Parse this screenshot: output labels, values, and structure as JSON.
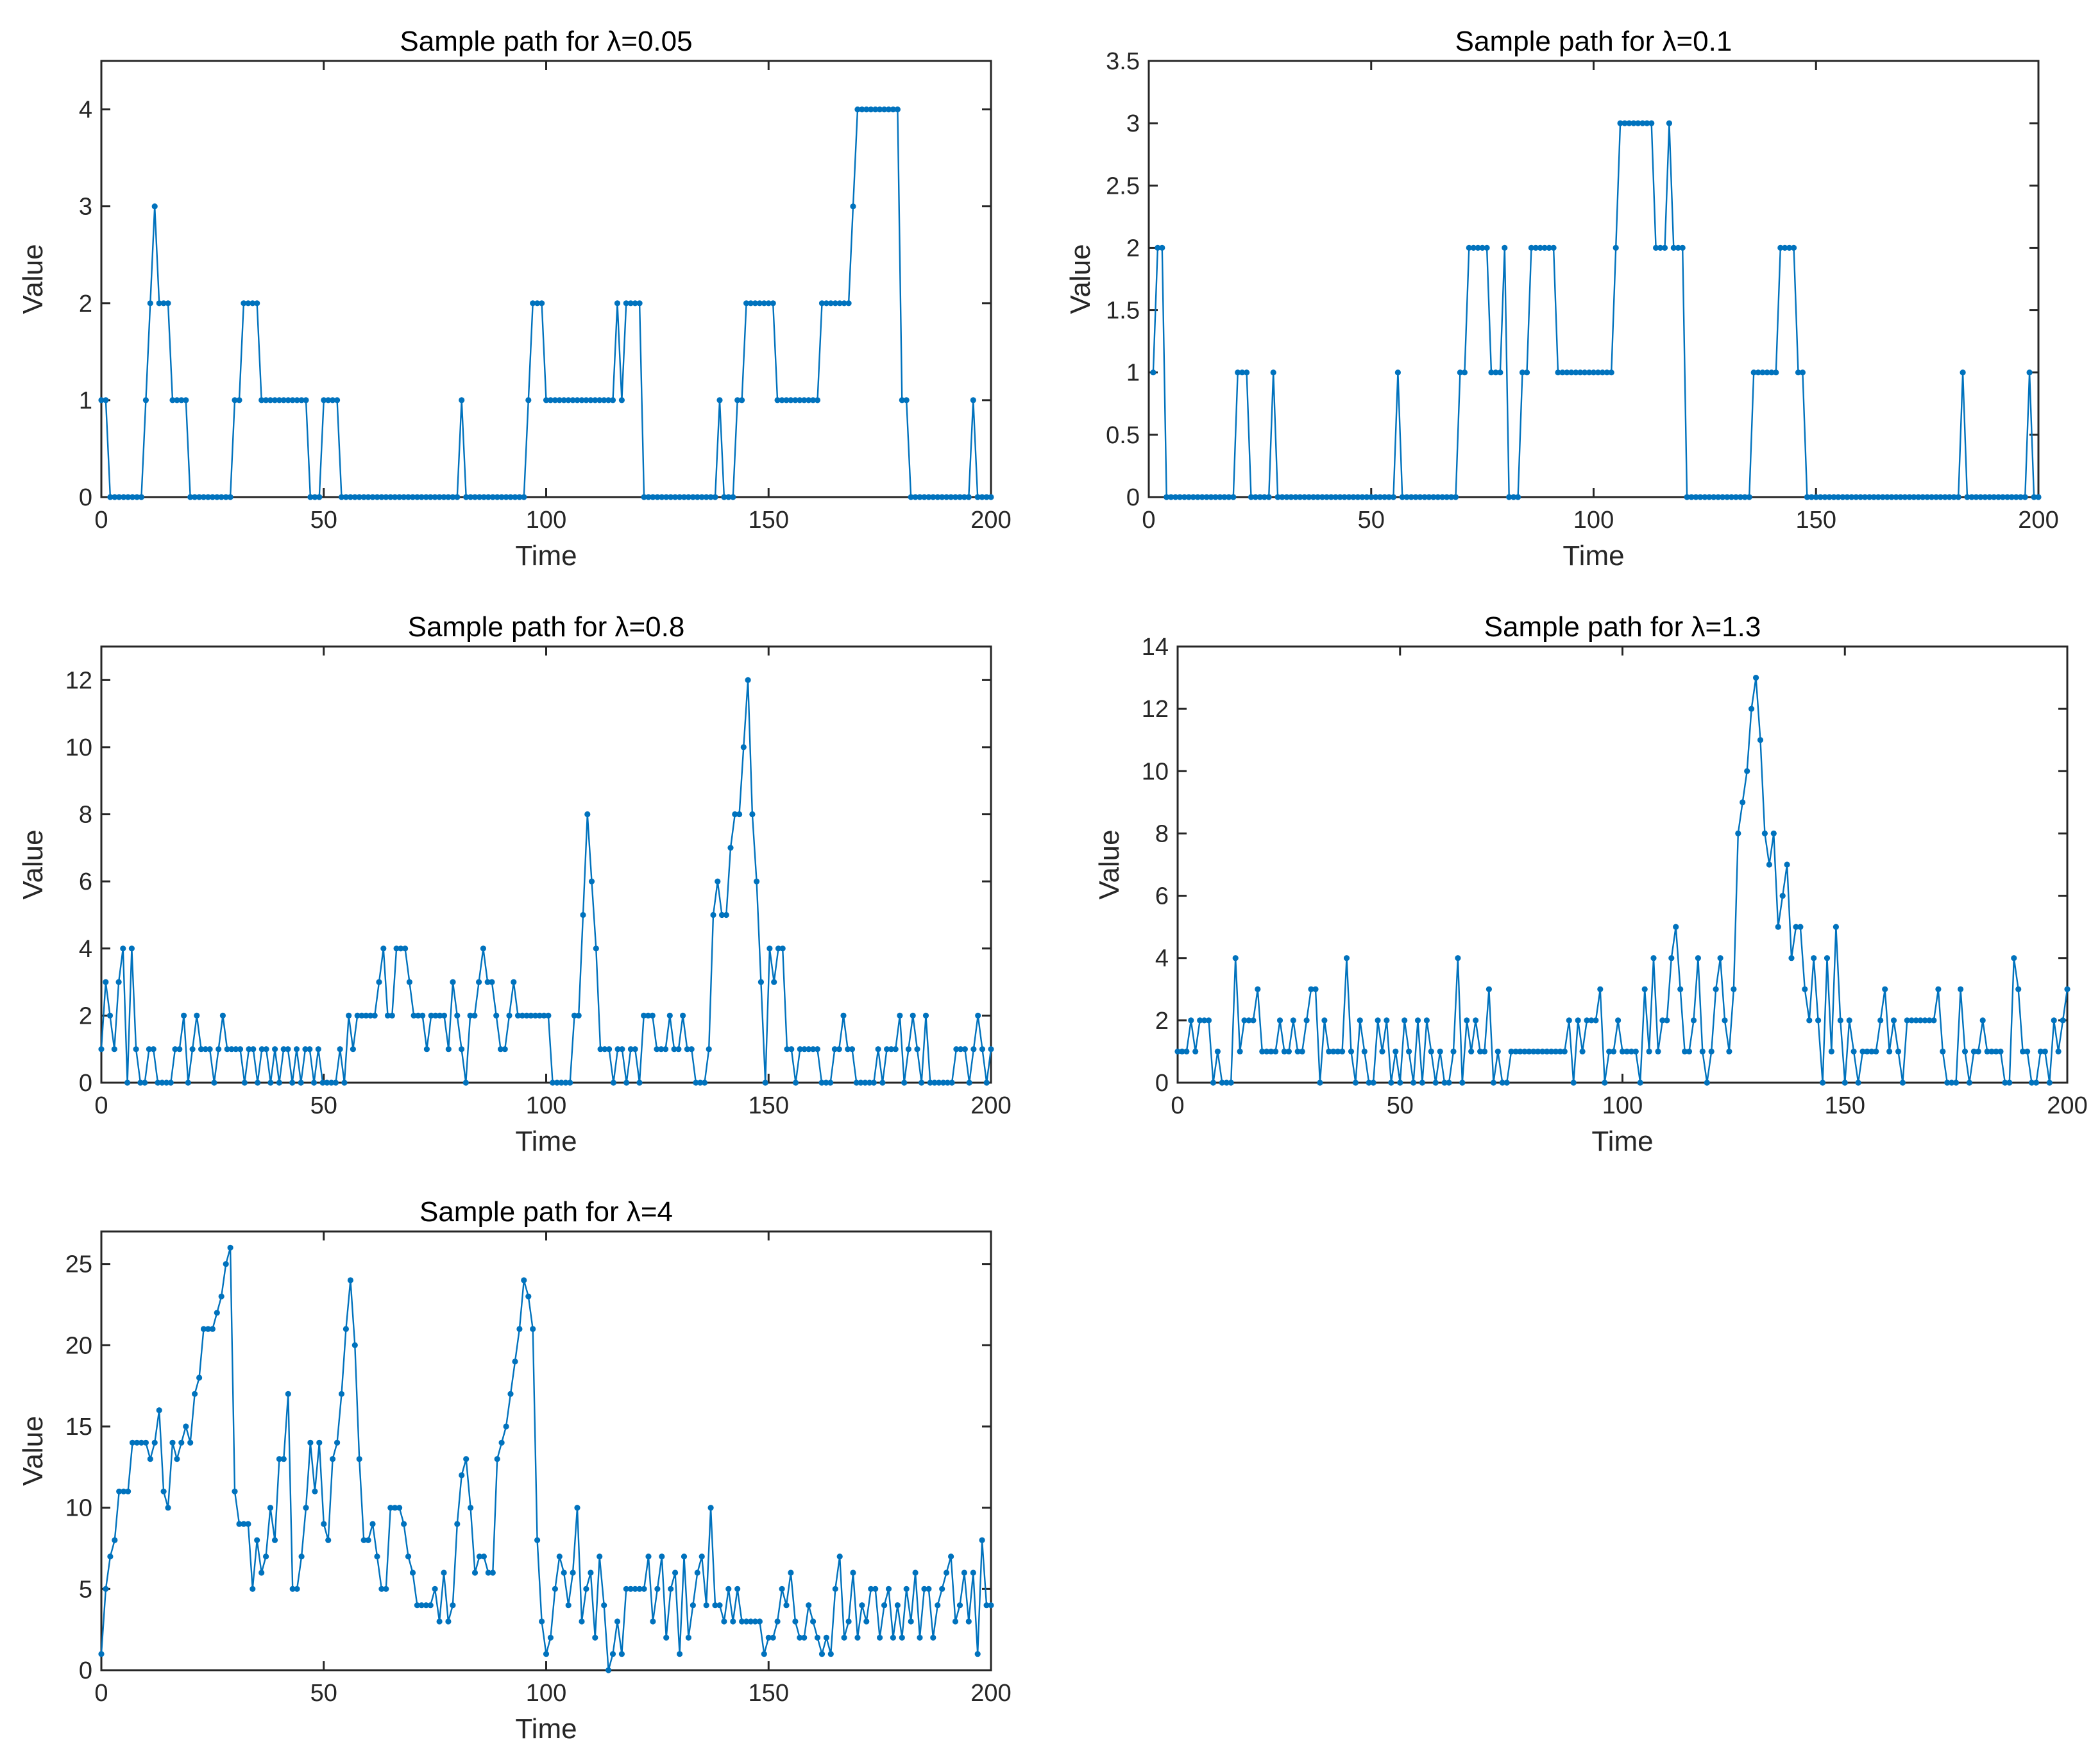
{
  "colors": {
    "series": "#0072BD",
    "axis": "#262626"
  },
  "chart_data": [
    {
      "type": "line",
      "title": "Sample path for λ=0.05",
      "xlabel": "Time",
      "ylabel": "Value",
      "xlim": [
        0,
        200
      ],
      "ylim": [
        0,
        4.5
      ],
      "xticks": [
        0,
        50,
        100,
        150,
        200
      ],
      "yticks": [
        0,
        1,
        2,
        3,
        4
      ],
      "grid": false,
      "segments": [
        [
          0,
          1
        ],
        [
          1,
          1
        ],
        [
          2,
          0
        ],
        [
          9,
          0
        ],
        [
          10,
          1
        ],
        [
          11,
          2
        ],
        [
          12,
          3
        ],
        [
          13,
          2
        ],
        [
          15,
          2
        ],
        [
          16,
          1
        ],
        [
          19,
          1
        ],
        [
          20,
          0
        ],
        [
          29,
          0
        ],
        [
          30,
          1
        ],
        [
          31,
          1
        ],
        [
          32,
          2
        ],
        [
          35,
          2
        ],
        [
          36,
          1
        ],
        [
          46,
          1
        ],
        [
          47,
          0
        ],
        [
          49,
          0
        ],
        [
          50,
          1
        ],
        [
          53,
          1
        ],
        [
          54,
          0
        ],
        [
          80,
          0
        ],
        [
          81,
          1
        ],
        [
          82,
          0
        ],
        [
          95,
          0
        ],
        [
          96,
          1
        ],
        [
          97,
          2
        ],
        [
          99,
          2
        ],
        [
          100,
          1
        ],
        [
          115,
          1
        ],
        [
          116,
          2
        ],
        [
          117,
          1
        ],
        [
          118,
          2
        ],
        [
          121,
          2
        ],
        [
          122,
          0
        ],
        [
          138,
          0
        ],
        [
          139,
          1
        ],
        [
          140,
          0
        ],
        [
          142,
          0
        ],
        [
          143,
          1
        ],
        [
          144,
          1
        ],
        [
          145,
          2
        ],
        [
          151,
          2
        ],
        [
          152,
          1
        ],
        [
          161,
          1
        ],
        [
          162,
          2
        ],
        [
          168,
          2
        ],
        [
          169,
          3
        ],
        [
          170,
          4
        ],
        [
          179,
          4
        ],
        [
          180,
          1
        ],
        [
          181,
          1
        ],
        [
          182,
          0
        ],
        [
          195,
          0
        ],
        [
          196,
          1
        ],
        [
          197,
          0
        ],
        [
          200,
          0
        ]
      ]
    },
    {
      "type": "line",
      "title": "Sample path for λ=0.1",
      "xlabel": "Time",
      "ylabel": "Value",
      "xlim": [
        0,
        200
      ],
      "ylim": [
        0,
        3.5
      ],
      "xticks": [
        0,
        50,
        100,
        150,
        200
      ],
      "yticks": [
        0,
        0.5,
        1,
        1.5,
        2,
        2.5,
        3,
        3.5
      ],
      "grid": false,
      "segments": [
        [
          1,
          1
        ],
        [
          2,
          2
        ],
        [
          3,
          2
        ],
        [
          4,
          0
        ],
        [
          19,
          0
        ],
        [
          20,
          1
        ],
        [
          22,
          1
        ],
        [
          23,
          0
        ],
        [
          27,
          0
        ],
        [
          28,
          1
        ],
        [
          29,
          0
        ],
        [
          55,
          0
        ],
        [
          56,
          1
        ],
        [
          57,
          0
        ],
        [
          69,
          0
        ],
        [
          70,
          1
        ],
        [
          71,
          1
        ],
        [
          72,
          2
        ],
        [
          76,
          2
        ],
        [
          77,
          1
        ],
        [
          79,
          1
        ],
        [
          80,
          2
        ],
        [
          81,
          0
        ],
        [
          83,
          0
        ],
        [
          84,
          1
        ],
        [
          85,
          1
        ],
        [
          86,
          2
        ],
        [
          91,
          2
        ],
        [
          92,
          1
        ],
        [
          104,
          1
        ],
        [
          105,
          2
        ],
        [
          106,
          3
        ],
        [
          113,
          3
        ],
        [
          114,
          2
        ],
        [
          116,
          2
        ],
        [
          117,
          3
        ],
        [
          118,
          2
        ],
        [
          120,
          2
        ],
        [
          121,
          0
        ],
        [
          135,
          0
        ],
        [
          136,
          1
        ],
        [
          141,
          1
        ],
        [
          142,
          2
        ],
        [
          145,
          2
        ],
        [
          146,
          1
        ],
        [
          147,
          1
        ],
        [
          148,
          0
        ],
        [
          182,
          0
        ],
        [
          183,
          1
        ],
        [
          184,
          0
        ],
        [
          197,
          0
        ],
        [
          198,
          1
        ],
        [
          199,
          0
        ],
        [
          200,
          0
        ]
      ]
    },
    {
      "type": "line",
      "title": "Sample path for λ=0.8",
      "xlabel": "Time",
      "ylabel": "Value",
      "xlim": [
        0,
        200
      ],
      "ylim": [
        0,
        13
      ],
      "xticks": [
        0,
        50,
        100,
        150,
        200
      ],
      "yticks": [
        0,
        2,
        4,
        6,
        8,
        10,
        12
      ],
      "grid": false,
      "values": [
        1,
        3,
        2,
        1,
        3,
        4,
        0,
        4,
        1,
        0,
        0,
        1,
        1,
        0,
        0,
        0,
        0,
        1,
        1,
        2,
        0,
        1,
        2,
        1,
        1,
        1,
        0,
        1,
        2,
        1,
        1,
        1,
        1,
        0,
        1,
        1,
        0,
        1,
        1,
        0,
        1,
        0,
        1,
        1,
        0,
        1,
        0,
        1,
        1,
        0,
        1,
        0,
        0,
        0,
        0,
        1,
        0,
        2,
        1,
        2,
        2,
        2,
        2,
        2,
        3,
        4,
        2,
        2,
        4,
        4,
        4,
        3,
        2,
        2,
        2,
        1,
        2,
        2,
        2,
        2,
        1,
        3,
        2,
        1,
        0,
        2,
        2,
        3,
        4,
        3,
        3,
        2,
        1,
        1,
        2,
        3,
        2,
        2,
        2,
        2,
        2,
        2,
        2,
        2,
        0,
        0,
        0,
        0,
        0,
        2,
        2,
        5,
        8,
        6,
        4,
        1,
        1,
        1,
        0,
        1,
        1,
        0,
        1,
        1,
        0,
        2,
        2,
        2,
        1,
        1,
        1,
        2,
        1,
        1,
        2,
        1,
        1,
        0,
        0,
        0,
        1,
        5,
        6,
        5,
        5,
        7,
        8,
        8,
        10,
        12,
        8,
        6,
        3,
        0,
        4,
        3,
        4,
        4,
        1,
        1,
        0,
        1,
        1,
        1,
        1,
        1,
        0,
        0,
        0,
        1,
        1,
        2,
        1,
        1,
        0,
        0,
        0,
        0,
        0,
        1,
        0,
        1,
        1,
        1,
        2,
        0,
        1,
        2,
        1,
        0,
        2,
        0,
        0,
        0,
        0,
        0,
        0,
        1,
        1,
        1,
        0,
        1,
        2,
        1,
        0,
        1
      ]
    },
    {
      "type": "line",
      "title": "Sample path for λ=1.3",
      "xlabel": "Time",
      "ylabel": "Value",
      "xlim": [
        0,
        200
      ],
      "ylim": [
        0,
        14
      ],
      "xticks": [
        0,
        50,
        100,
        150,
        200
      ],
      "yticks": [
        0,
        2,
        4,
        6,
        8,
        10,
        12,
        14
      ],
      "grid": false,
      "values": [
        1,
        1,
        1,
        2,
        1,
        2,
        2,
        2,
        0,
        1,
        0,
        0,
        0,
        4,
        1,
        2,
        2,
        2,
        3,
        1,
        1,
        1,
        1,
        2,
        1,
        1,
        2,
        1,
        1,
        2,
        3,
        3,
        0,
        2,
        1,
        1,
        1,
        1,
        4,
        1,
        0,
        2,
        1,
        0,
        0,
        2,
        1,
        2,
        0,
        1,
        0,
        2,
        1,
        0,
        2,
        0,
        2,
        1,
        0,
        1,
        0,
        0,
        1,
        4,
        0,
        2,
        1,
        2,
        1,
        1,
        3,
        0,
        1,
        0,
        0,
        1,
        1,
        1,
        1,
        1,
        1,
        1,
        1,
        1,
        1,
        1,
        1,
        1,
        2,
        0,
        2,
        1,
        2,
        2,
        2,
        3,
        0,
        1,
        1,
        2,
        1,
        1,
        1,
        1,
        0,
        3,
        1,
        4,
        1,
        2,
        2,
        4,
        5,
        3,
        1,
        1,
        2,
        4,
        1,
        0,
        1,
        3,
        4,
        2,
        1,
        3,
        8,
        9,
        10,
        12,
        13,
        11,
        8,
        7,
        8,
        5,
        6,
        7,
        4,
        5,
        5,
        3,
        2,
        4,
        2,
        0,
        4,
        1,
        5,
        2,
        0,
        2,
        1,
        0,
        1,
        1,
        1,
        1,
        2,
        3,
        1,
        2,
        1,
        0,
        2,
        2,
        2,
        2,
        2,
        2,
        2,
        3,
        1,
        0,
        0,
        0,
        3,
        1,
        0,
        1,
        1,
        2,
        1,
        1,
        1,
        1,
        0,
        0,
        4,
        3,
        1,
        1,
        0,
        0,
        1,
        1,
        0,
        2,
        1,
        2,
        3
      ]
    },
    {
      "type": "line",
      "title": "Sample path for λ=4",
      "xlabel": "Time",
      "ylabel": "Value",
      "xlim": [
        0,
        200
      ],
      "ylim": [
        0,
        27
      ],
      "xticks": [
        0,
        50,
        100,
        150,
        200
      ],
      "yticks": [
        0,
        5,
        10,
        15,
        20,
        25
      ],
      "grid": false,
      "values": [
        1,
        5,
        7,
        8,
        11,
        11,
        11,
        14,
        14,
        14,
        14,
        13,
        14,
        16,
        11,
        10,
        14,
        13,
        14,
        15,
        14,
        17,
        18,
        21,
        21,
        21,
        22,
        23,
        25,
        26,
        11,
        9,
        9,
        9,
        5,
        8,
        6,
        7,
        10,
        8,
        13,
        13,
        17,
        5,
        5,
        7,
        10,
        14,
        11,
        14,
        9,
        8,
        13,
        14,
        17,
        21,
        24,
        20,
        13,
        8,
        8,
        9,
        7,
        5,
        5,
        10,
        10,
        10,
        9,
        7,
        6,
        4,
        4,
        4,
        4,
        5,
        3,
        6,
        3,
        4,
        9,
        12,
        13,
        10,
        6,
        7,
        7,
        6,
        6,
        13,
        14,
        15,
        17,
        19,
        21,
        24,
        23,
        21,
        8,
        3,
        1,
        2,
        5,
        7,
        6,
        4,
        6,
        10,
        3,
        5,
        6,
        2,
        7,
        4,
        0,
        1,
        3,
        1,
        5,
        5,
        5,
        5,
        5,
        7,
        3,
        5,
        7,
        2,
        5,
        6,
        1,
        7,
        2,
        4,
        6,
        7,
        4,
        10,
        4,
        4,
        3,
        5,
        3,
        5,
        3,
        3,
        3,
        3,
        3,
        1,
        2,
        2,
        3,
        5,
        4,
        6,
        3,
        2,
        2,
        4,
        3,
        2,
        1,
        2,
        1,
        5,
        7,
        2,
        3,
        6,
        2,
        4,
        3,
        5,
        5,
        2,
        4,
        5,
        2,
        4,
        2,
        5,
        3,
        6,
        2,
        5,
        5,
        2,
        4,
        5,
        6,
        7,
        3,
        4,
        6,
        3,
        6,
        1,
        8,
        4,
        4
      ]
    }
  ]
}
